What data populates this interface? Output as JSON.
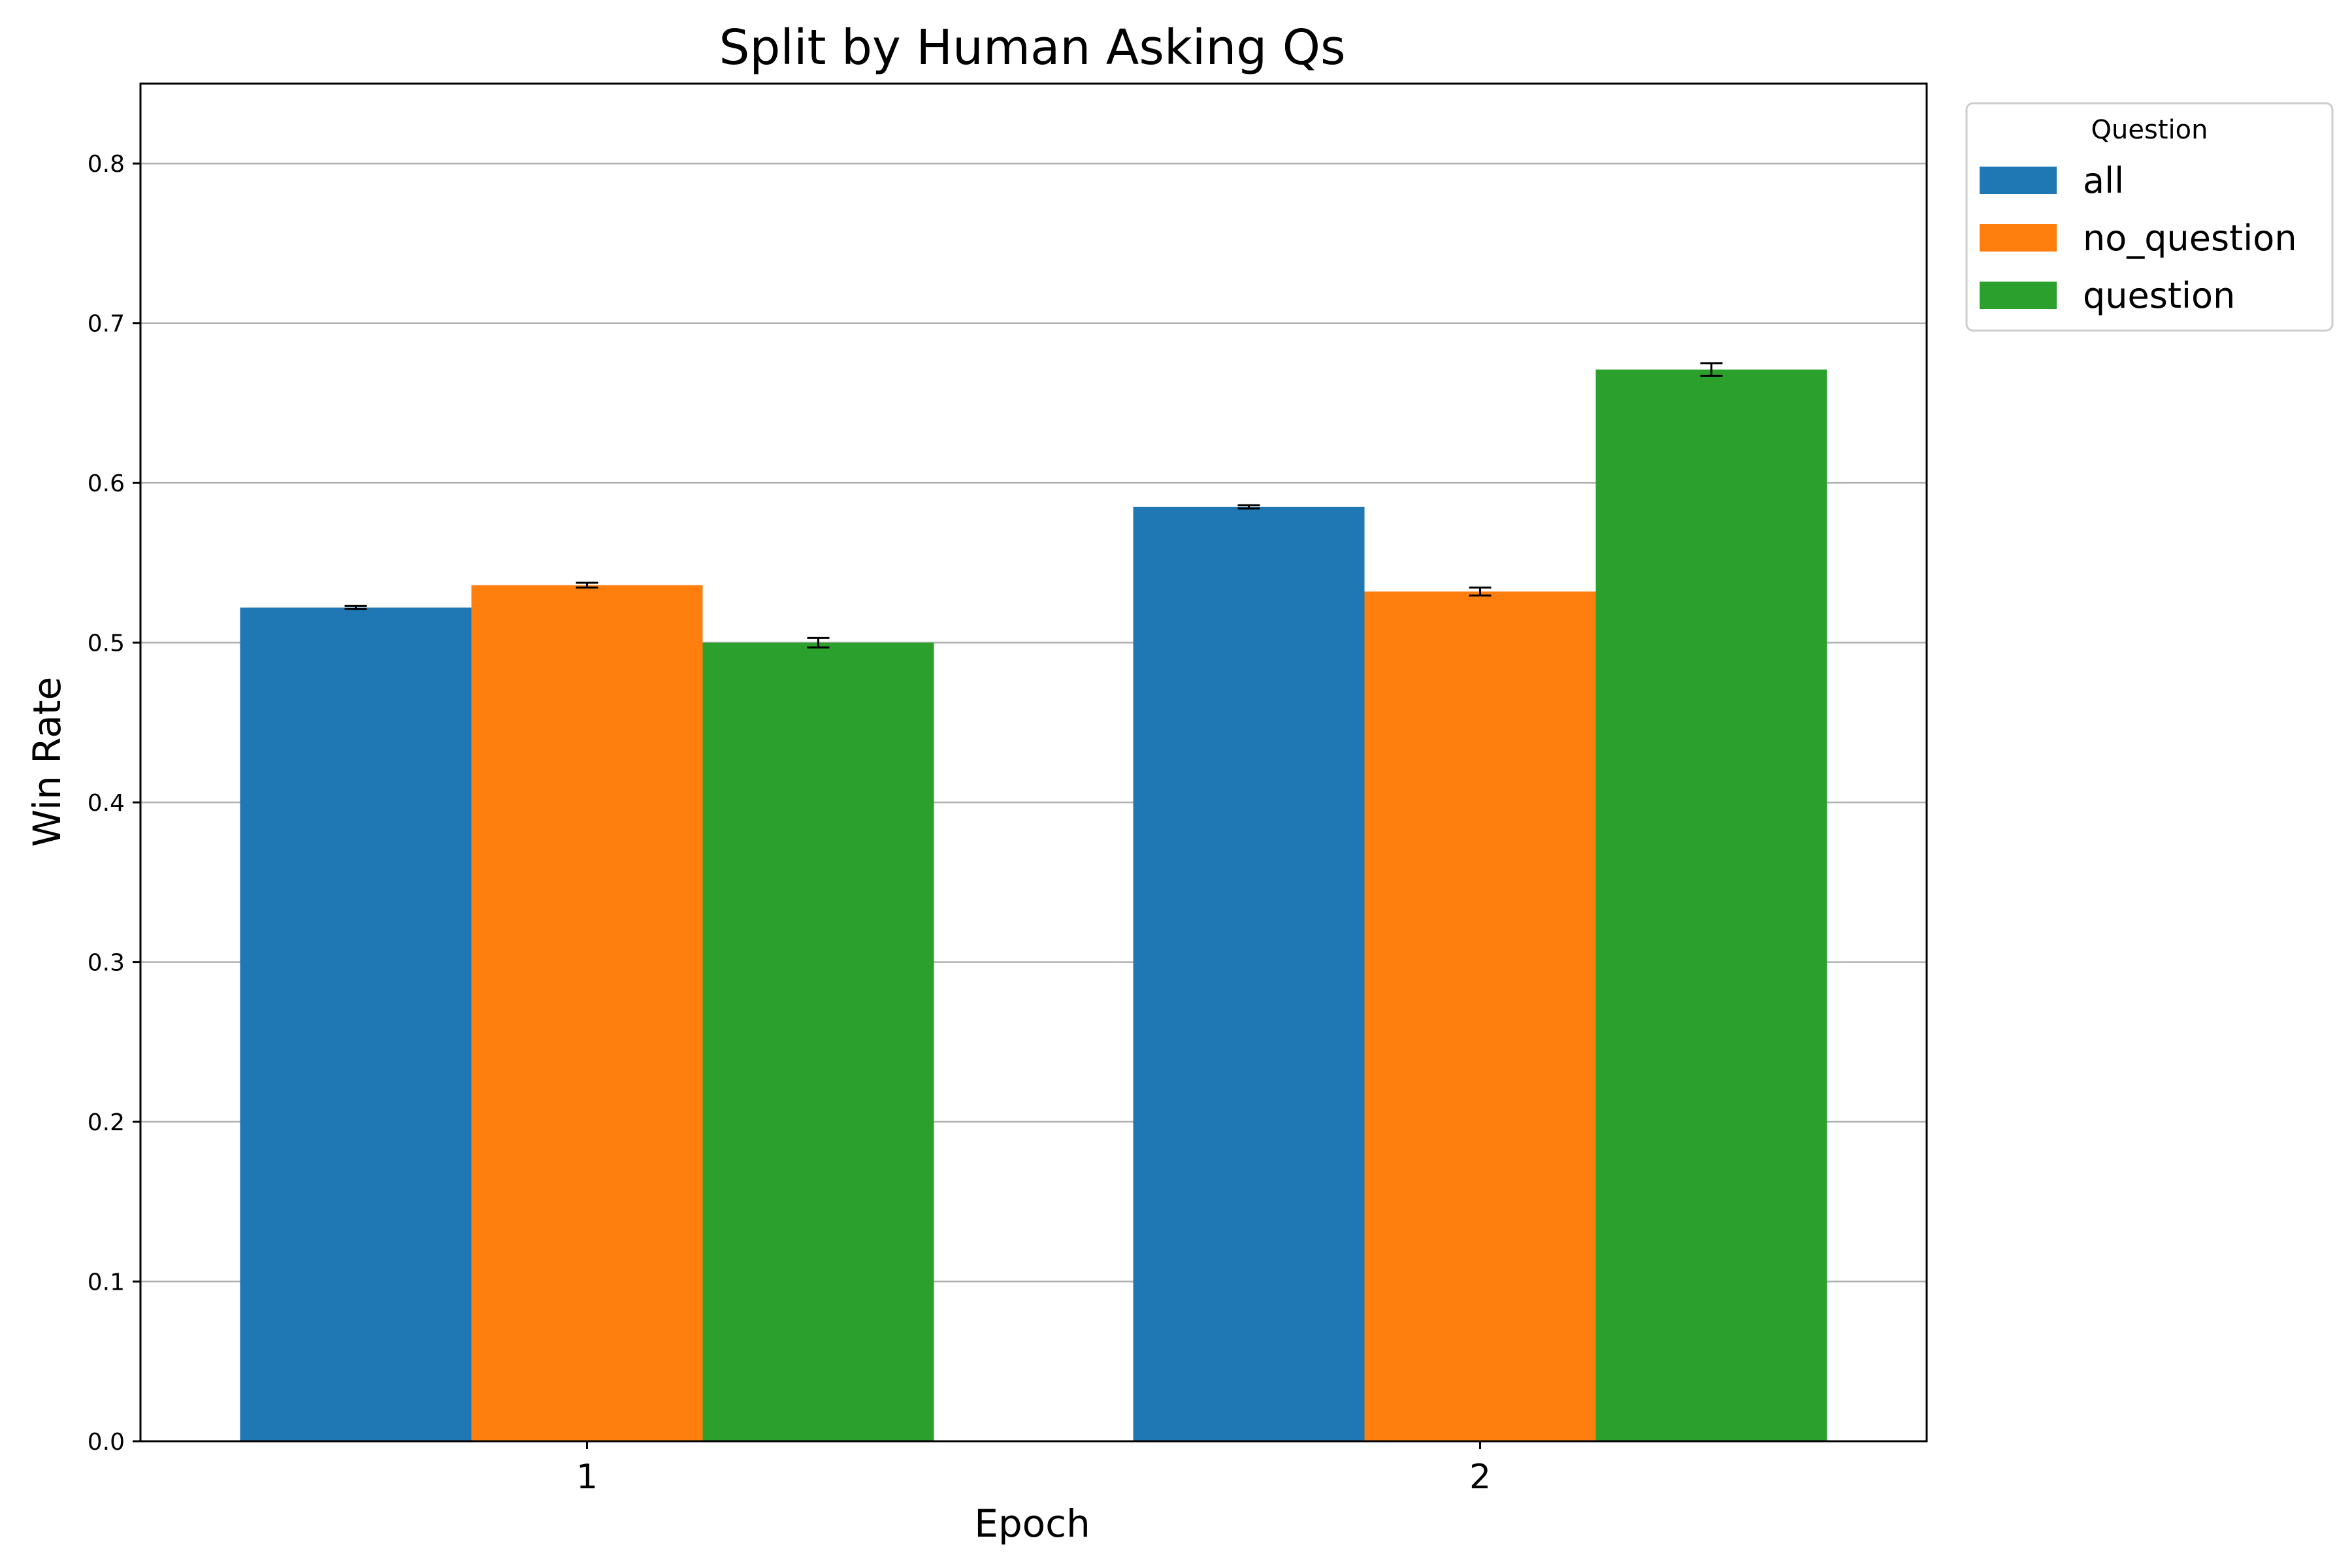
{
  "chart_data": {
    "type": "bar",
    "title": "Split by Human Asking Qs",
    "xlabel": "Epoch",
    "ylabel": "Win Rate",
    "categories": [
      "1",
      "2"
    ],
    "ylim": [
      0.0,
      0.85
    ],
    "yticks": [
      "0.0",
      "0.1",
      "0.2",
      "0.3",
      "0.4",
      "0.5",
      "0.6",
      "0.7",
      "0.8"
    ],
    "grid": "horizontal",
    "legend": {
      "title": "Question",
      "position": "outside-top-right"
    },
    "series": [
      {
        "name": "all",
        "color": "#1f77b4",
        "values": [
          0.522,
          0.585
        ],
        "errors": [
          0.001,
          0.001
        ]
      },
      {
        "name": "no_question",
        "color": "#ff7f0e",
        "values": [
          0.536,
          0.532
        ],
        "errors": [
          0.0015,
          0.0025
        ]
      },
      {
        "name": "question",
        "color": "#2ca02c",
        "values": [
          0.5,
          0.671
        ],
        "errors": [
          0.003,
          0.004
        ]
      }
    ]
  }
}
